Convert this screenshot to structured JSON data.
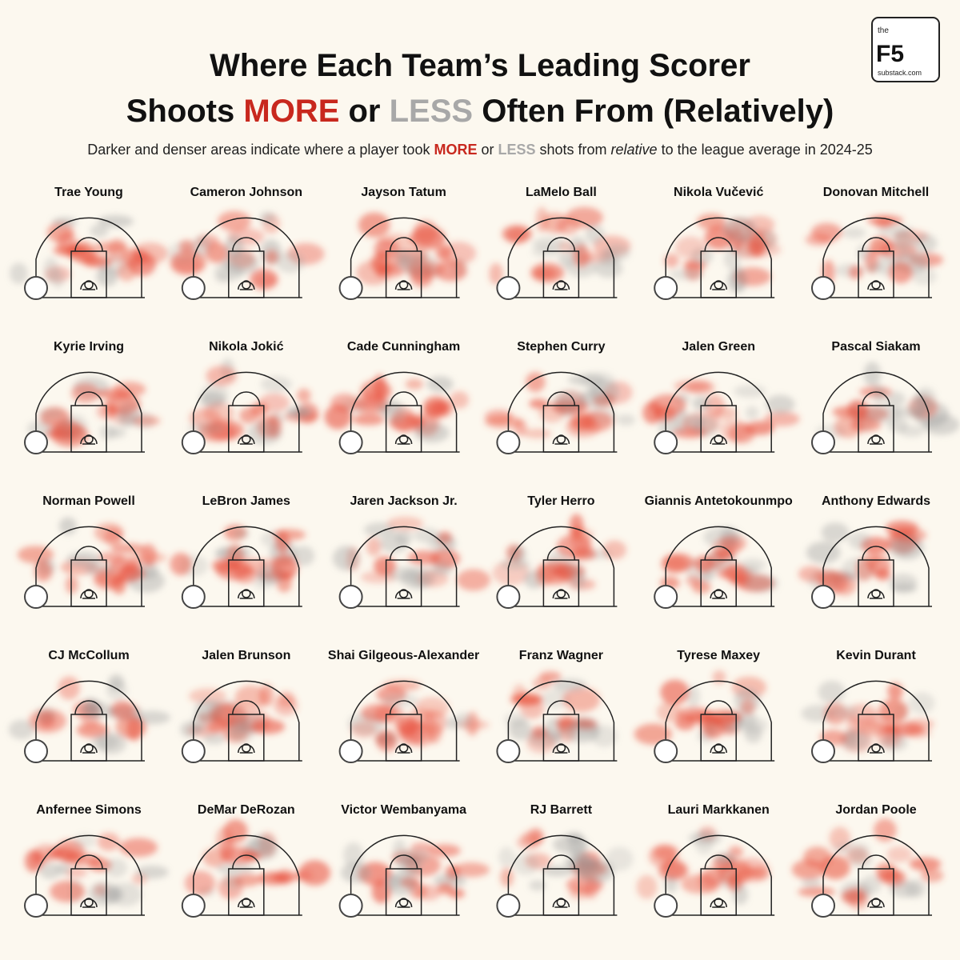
{
  "header": {
    "title_line1": "Where Each Team’s Leading Scorer",
    "title_line2": [
      "Shoots ",
      "MORE",
      " or ",
      "LESS",
      " Often From (Relatively)"
    ],
    "subtitle": [
      "Darker and denser areas indicate where a player took ",
      "MORE",
      " or ",
      "LESS",
      " shots from ",
      "relative",
      " to the league average in 2024-25"
    ]
  },
  "logo": {
    "small": "the",
    "big": "F5",
    "site": "substack.com"
  },
  "players": [
    "Trae Young",
    "Cameron Johnson",
    "Jayson Tatum",
    "LaMelo Ball",
    "Nikola Vučević",
    "Donovan Mitchell",
    "Kyrie Irving",
    "Nikola Jokić",
    "Cade Cunningham",
    "Stephen Curry",
    "Jalen Green",
    "Pascal Siakam",
    "Norman Powell",
    "LeBron James",
    "Jaren Jackson Jr.",
    "Tyler Herro",
    "Giannis Antetokounmpo",
    "Anthony Edwards",
    "CJ McCollum",
    "Jalen Brunson",
    "Shai Gilgeous-Alexander",
    "Franz Wagner",
    "Tyrese Maxey",
    "Kevin Durant",
    "Anfernee Simons",
    "DeMar DeRozan",
    "Victor Wembanyama",
    "RJ Barrett",
    "Lauri Markkanen",
    "Jordan Poole"
  ]
}
